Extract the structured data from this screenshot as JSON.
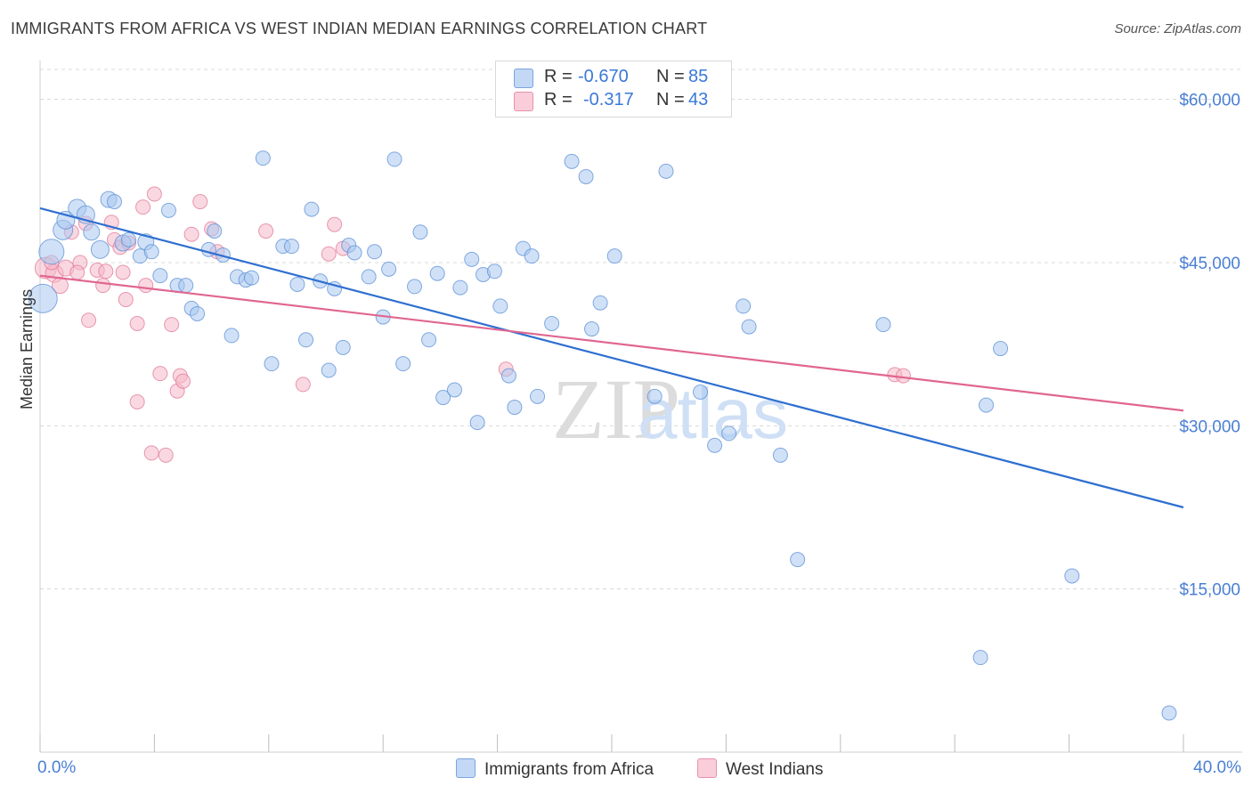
{
  "header": {
    "title": "IMMIGRANTS FROM AFRICA VS WEST INDIAN MEDIAN EARNINGS CORRELATION CHART",
    "source": "Source: ZipAtlas.com"
  },
  "watermark": {
    "zip": "ZIP",
    "atlas": "atlas"
  },
  "legend_top": {
    "rows": [
      {
        "r_label": "R =",
        "r_value": "-0.670",
        "n_label": "N =",
        "n_value": "85",
        "color": "#a9c8f0"
      },
      {
        "r_label": "R =",
        "r_value": "-0.317",
        "n_label": "N =",
        "n_value": "43",
        "color": "#f6b8c8"
      }
    ]
  },
  "axis": {
    "x_min_label": "0.0%",
    "x_max_label": "40.0%",
    "y_label": "Median Earnings",
    "y_ticks": [
      "$60,000",
      "$45,000",
      "$30,000",
      "$15,000"
    ]
  },
  "legend_bottom": {
    "series1": "Immigrants from Africa",
    "series2": "West Indians"
  },
  "colors": {
    "blue_fill": "#a9c8f0",
    "blue_stroke": "#5b8fd6",
    "blue_line": "#2e6fd0",
    "pink_fill": "#f6b8c8",
    "pink_stroke": "#e07898",
    "pink_line": "#e06690",
    "grid": "#d8d8d8",
    "axis_text": "#4a7fd4"
  },
  "chart_data": {
    "type": "scatter",
    "title": "IMMIGRANTS FROM AFRICA VS WEST INDIAN MEDIAN EARNINGS CORRELATION CHART",
    "xlabel": "",
    "ylabel": "Median Earnings",
    "xlim": [
      0,
      40
    ],
    "ylim": [
      0,
      63000
    ],
    "y_ticks": [
      15000,
      30000,
      45000,
      60000
    ],
    "x_ticks": [
      0,
      4,
      8,
      12,
      16,
      20,
      24,
      28,
      32,
      36,
      40
    ],
    "grid": true,
    "legend_position": "bottom",
    "series": [
      {
        "name": "Immigrants from Africa",
        "r": -0.67,
        "n": 85,
        "trend": [
          [
            0,
            50000
          ],
          [
            40,
            22500
          ]
        ],
        "points": [
          [
            0.1,
            41700,
            16
          ],
          [
            0.4,
            46000,
            14
          ],
          [
            0.8,
            48000,
            11
          ],
          [
            0.9,
            48900,
            10
          ],
          [
            1.3,
            50000,
            10
          ],
          [
            1.6,
            49400,
            10
          ],
          [
            1.8,
            47800,
            9
          ],
          [
            2.1,
            46200,
            10
          ],
          [
            2.4,
            50800,
            9
          ],
          [
            2.6,
            50600,
            8
          ],
          [
            2.9,
            46800,
            9
          ],
          [
            3.1,
            47100,
            8
          ],
          [
            3.5,
            45600,
            8
          ],
          [
            3.7,
            46900,
            9
          ],
          [
            3.9,
            46000,
            8
          ],
          [
            4.2,
            43800,
            8
          ],
          [
            4.5,
            49800,
            8
          ],
          [
            4.8,
            42900,
            8
          ],
          [
            5.1,
            42900,
            8
          ],
          [
            5.3,
            40800,
            8
          ],
          [
            5.5,
            40300,
            8
          ],
          [
            5.9,
            46200,
            8
          ],
          [
            6.1,
            47900,
            8
          ],
          [
            6.4,
            45700,
            8
          ],
          [
            6.7,
            38300,
            8
          ],
          [
            6.9,
            43700,
            8
          ],
          [
            7.2,
            43400,
            8
          ],
          [
            7.4,
            43600,
            8
          ],
          [
            7.8,
            54600,
            8
          ],
          [
            8.1,
            35700,
            8
          ],
          [
            8.5,
            46500,
            8
          ],
          [
            8.8,
            46500,
            8
          ],
          [
            9.0,
            43000,
            8
          ],
          [
            9.3,
            37900,
            8
          ],
          [
            9.5,
            49900,
            8
          ],
          [
            9.8,
            43300,
            8
          ],
          [
            10.1,
            35100,
            8
          ],
          [
            10.3,
            42600,
            8
          ],
          [
            10.6,
            37200,
            8
          ],
          [
            10.8,
            46600,
            8
          ],
          [
            11.0,
            45900,
            8
          ],
          [
            11.5,
            43700,
            8
          ],
          [
            11.7,
            46000,
            8
          ],
          [
            12.0,
            40000,
            8
          ],
          [
            12.2,
            44400,
            8
          ],
          [
            12.4,
            54500,
            8
          ],
          [
            12.7,
            35700,
            8
          ],
          [
            13.1,
            42800,
            8
          ],
          [
            13.3,
            47800,
            8
          ],
          [
            13.6,
            37900,
            8
          ],
          [
            13.9,
            44000,
            8
          ],
          [
            14.1,
            32600,
            8
          ],
          [
            14.5,
            33300,
            8
          ],
          [
            14.7,
            42700,
            8
          ],
          [
            15.1,
            45300,
            8
          ],
          [
            15.3,
            30300,
            8
          ],
          [
            15.5,
            43900,
            8
          ],
          [
            15.9,
            44200,
            8
          ],
          [
            16.1,
            41000,
            8
          ],
          [
            16.4,
            34600,
            8
          ],
          [
            16.6,
            31700,
            8
          ],
          [
            16.9,
            46300,
            8
          ],
          [
            17.2,
            45600,
            8
          ],
          [
            17.4,
            32700,
            8
          ],
          [
            17.9,
            39400,
            8
          ],
          [
            18.6,
            54300,
            8
          ],
          [
            19.1,
            52900,
            8
          ],
          [
            19.3,
            38900,
            8
          ],
          [
            19.6,
            41300,
            8
          ],
          [
            20.1,
            45600,
            8
          ],
          [
            21.5,
            32700,
            8
          ],
          [
            21.9,
            53400,
            8
          ],
          [
            23.1,
            33100,
            8
          ],
          [
            23.6,
            28200,
            8
          ],
          [
            24.1,
            29300,
            8
          ],
          [
            24.6,
            41000,
            8
          ],
          [
            24.8,
            39100,
            8
          ],
          [
            25.9,
            27300,
            8
          ],
          [
            26.5,
            17700,
            8
          ],
          [
            29.5,
            39300,
            8
          ],
          [
            33.1,
            31900,
            8
          ],
          [
            33.6,
            37100,
            8
          ],
          [
            32.9,
            8700,
            8
          ],
          [
            36.1,
            16200,
            8
          ],
          [
            39.5,
            3600,
            8
          ]
        ]
      },
      {
        "name": "West Indians",
        "r": -0.317,
        "n": 43,
        "trend": [
          [
            0,
            43800
          ],
          [
            40,
            31400
          ]
        ],
        "points": [
          [
            0.2,
            44500,
            12
          ],
          [
            0.5,
            44000,
            10
          ],
          [
            0.7,
            42900,
            9
          ],
          [
            0.9,
            44500,
            9
          ],
          [
            1.1,
            47800,
            8
          ],
          [
            1.4,
            45000,
            8
          ],
          [
            1.6,
            48600,
            8
          ],
          [
            1.7,
            39700,
            8
          ],
          [
            2.0,
            44300,
            8
          ],
          [
            2.2,
            42900,
            8
          ],
          [
            2.3,
            44200,
            8
          ],
          [
            2.5,
            48700,
            8
          ],
          [
            2.6,
            47100,
            8
          ],
          [
            2.8,
            46400,
            8
          ],
          [
            3.0,
            41600,
            8
          ],
          [
            3.1,
            46800,
            8
          ],
          [
            3.4,
            39400,
            8
          ],
          [
            3.4,
            32200,
            8
          ],
          [
            3.6,
            50100,
            8
          ],
          [
            3.7,
            42900,
            8
          ],
          [
            3.9,
            27500,
            8
          ],
          [
            4.0,
            51300,
            8
          ],
          [
            4.2,
            34800,
            8
          ],
          [
            4.4,
            27300,
            8
          ],
          [
            4.6,
            39300,
            8
          ],
          [
            4.8,
            33200,
            8
          ],
          [
            4.9,
            34600,
            8
          ],
          [
            5.0,
            34100,
            8
          ],
          [
            5.3,
            47600,
            8
          ],
          [
            5.6,
            50600,
            8
          ],
          [
            6.0,
            48100,
            8
          ],
          [
            6.2,
            46000,
            8
          ],
          [
            7.9,
            47900,
            8
          ],
          [
            9.2,
            33800,
            8
          ],
          [
            10.1,
            45800,
            8
          ],
          [
            10.3,
            48500,
            8
          ],
          [
            10.6,
            46300,
            8
          ],
          [
            16.3,
            35200,
            8
          ],
          [
            29.9,
            34700,
            8
          ],
          [
            30.2,
            34600,
            8
          ],
          [
            1.3,
            44100,
            8
          ],
          [
            0.4,
            45000,
            8
          ],
          [
            2.9,
            44100,
            8
          ]
        ]
      }
    ]
  }
}
